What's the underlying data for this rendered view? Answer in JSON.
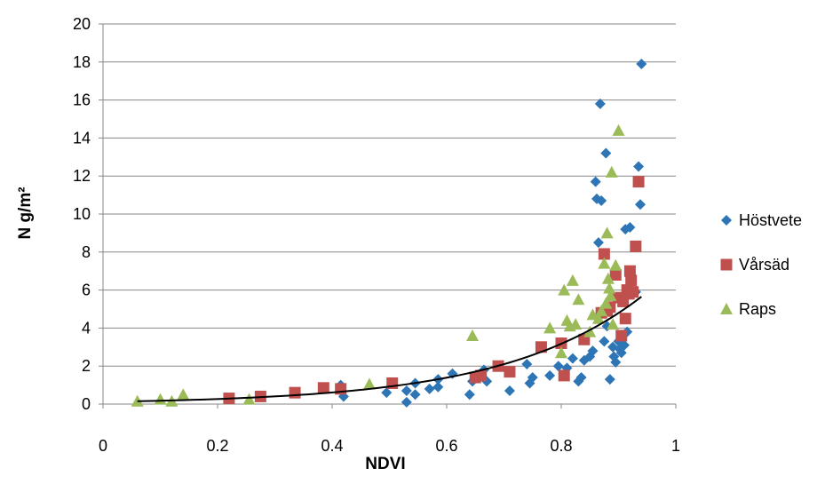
{
  "chart_data": {
    "type": "scatter",
    "title": "",
    "xlabel": "NDVI",
    "ylabel": "N g/m²",
    "xlim": [
      0,
      1
    ],
    "ylim": [
      0,
      20
    ],
    "x_ticks": [
      "0",
      "0.2",
      "0.4",
      "0.6",
      "0.8",
      "1"
    ],
    "y_ticks": [
      "0",
      "2",
      "4",
      "6",
      "8",
      "10",
      "12",
      "14",
      "16",
      "18",
      "20"
    ],
    "grid": "horizontal",
    "legend_position": "right",
    "series": [
      {
        "name": "Höstvete",
        "marker": "diamond",
        "color": "#2E75B6",
        "points": [
          [
            0.415,
            1.0
          ],
          [
            0.42,
            0.4
          ],
          [
            0.495,
            0.6
          ],
          [
            0.53,
            0.7
          ],
          [
            0.53,
            0.1
          ],
          [
            0.545,
            0.5
          ],
          [
            0.545,
            1.1
          ],
          [
            0.57,
            0.8
          ],
          [
            0.585,
            1.3
          ],
          [
            0.585,
            0.9
          ],
          [
            0.61,
            1.6
          ],
          [
            0.64,
            0.5
          ],
          [
            0.645,
            1.2
          ],
          [
            0.665,
            1.8
          ],
          [
            0.67,
            1.2
          ],
          [
            0.71,
            0.7
          ],
          [
            0.74,
            2.1
          ],
          [
            0.745,
            1.1
          ],
          [
            0.75,
            1.4
          ],
          [
            0.78,
            1.5
          ],
          [
            0.795,
            2.0
          ],
          [
            0.81,
            1.9
          ],
          [
            0.82,
            2.4
          ],
          [
            0.83,
            1.2
          ],
          [
            0.835,
            1.4
          ],
          [
            0.84,
            2.3
          ],
          [
            0.85,
            2.5
          ],
          [
            0.855,
            2.8
          ],
          [
            0.86,
            11.7
          ],
          [
            0.862,
            10.8
          ],
          [
            0.865,
            8.5
          ],
          [
            0.868,
            15.8
          ],
          [
            0.87,
            10.7
          ],
          [
            0.875,
            3.3
          ],
          [
            0.878,
            13.2
          ],
          [
            0.88,
            4.1
          ],
          [
            0.885,
            1.3
          ],
          [
            0.89,
            3.0
          ],
          [
            0.892,
            2.5
          ],
          [
            0.895,
            2.2
          ],
          [
            0.9,
            3.3
          ],
          [
            0.902,
            2.9
          ],
          [
            0.905,
            2.7
          ],
          [
            0.908,
            3.6
          ],
          [
            0.91,
            3.1
          ],
          [
            0.912,
            9.2
          ],
          [
            0.915,
            3.8
          ],
          [
            0.92,
            9.3
          ],
          [
            0.93,
            5.9
          ],
          [
            0.935,
            12.5
          ],
          [
            0.938,
            10.5
          ],
          [
            0.94,
            17.9
          ]
        ]
      },
      {
        "name": "Vårsäd",
        "marker": "square",
        "color": "#C0504D",
        "points": [
          [
            0.22,
            0.3
          ],
          [
            0.275,
            0.4
          ],
          [
            0.335,
            0.6
          ],
          [
            0.385,
            0.85
          ],
          [
            0.415,
            0.8
          ],
          [
            0.505,
            1.1
          ],
          [
            0.65,
            1.4
          ],
          [
            0.66,
            1.5
          ],
          [
            0.69,
            2.0
          ],
          [
            0.71,
            1.7
          ],
          [
            0.765,
            3.0
          ],
          [
            0.8,
            3.2
          ],
          [
            0.805,
            1.5
          ],
          [
            0.84,
            3.4
          ],
          [
            0.87,
            4.8
          ],
          [
            0.875,
            7.9
          ],
          [
            0.88,
            4.9
          ],
          [
            0.885,
            5.1
          ],
          [
            0.895,
            6.8
          ],
          [
            0.9,
            5.6
          ],
          [
            0.905,
            3.6
          ],
          [
            0.908,
            5.4
          ],
          [
            0.912,
            4.5
          ],
          [
            0.915,
            6.0
          ],
          [
            0.918,
            5.8
          ],
          [
            0.92,
            7.0
          ],
          [
            0.922,
            6.5
          ],
          [
            0.925,
            5.9
          ],
          [
            0.93,
            8.3
          ],
          [
            0.935,
            11.7
          ]
        ]
      },
      {
        "name": "Raps",
        "marker": "triangle",
        "color": "#9BBB59",
        "points": [
          [
            0.06,
            0.15
          ],
          [
            0.1,
            0.25
          ],
          [
            0.12,
            0.15
          ],
          [
            0.14,
            0.5
          ],
          [
            0.255,
            0.25
          ],
          [
            0.465,
            1.05
          ],
          [
            0.645,
            3.6
          ],
          [
            0.78,
            4.0
          ],
          [
            0.8,
            2.7
          ],
          [
            0.805,
            6.0
          ],
          [
            0.81,
            4.4
          ],
          [
            0.815,
            4.1
          ],
          [
            0.82,
            6.5
          ],
          [
            0.825,
            4.2
          ],
          [
            0.83,
            5.5
          ],
          [
            0.85,
            3.8
          ],
          [
            0.855,
            4.7
          ],
          [
            0.865,
            4.5
          ],
          [
            0.87,
            4.9
          ],
          [
            0.875,
            7.4
          ],
          [
            0.878,
            5.3
          ],
          [
            0.88,
            9.0
          ],
          [
            0.882,
            6.6
          ],
          [
            0.884,
            6.1
          ],
          [
            0.886,
            5.7
          ],
          [
            0.888,
            12.2
          ],
          [
            0.89,
            4.2
          ],
          [
            0.895,
            7.3
          ],
          [
            0.9,
            14.4
          ]
        ]
      }
    ],
    "trendline": {
      "type": "exponential",
      "color": "#000000",
      "x_range": [
        0.06,
        0.94
      ],
      "points": [
        [
          0.06,
          0.15
        ],
        [
          0.94,
          5.65
        ]
      ]
    }
  }
}
